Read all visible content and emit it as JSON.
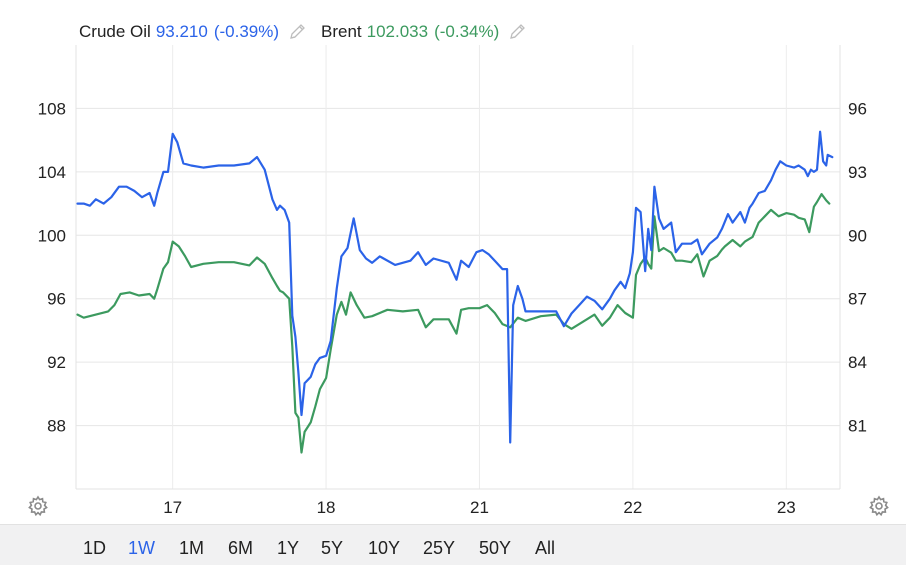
{
  "legend": [
    {
      "name": "Crude Oil",
      "value": "93.210",
      "change": "(-0.39%)",
      "color": "#2b63e8"
    },
    {
      "name": "Brent",
      "value": "102.033",
      "change": "(-0.34%)",
      "color": "#3c9a5f"
    }
  ],
  "range_buttons": [
    "1D",
    "1W",
    "1M",
    "6M",
    "1Y",
    "5Y",
    "10Y",
    "25Y",
    "50Y",
    "All"
  ],
  "active_range": "1W",
  "icons": {
    "edit": "pencil-icon",
    "settings": "gear-icon"
  },
  "chart_data": {
    "type": "line",
    "x_ticks": [
      {
        "label": "17",
        "t": 1.0
      },
      {
        "label": "18",
        "t": 2.0
      },
      {
        "label": "21",
        "t": 3.0
      },
      {
        "label": "22",
        "t": 4.0
      },
      {
        "label": "23",
        "t": 5.0
      }
    ],
    "xlim": [
      0.37,
      5.35
    ],
    "left_axis": {
      "ticks": [
        88,
        92,
        96,
        100,
        104,
        108
      ],
      "ylim": [
        84.0,
        112.0
      ]
    },
    "right_axis": {
      "ticks": [
        81,
        84,
        87,
        90,
        93,
        96
      ],
      "ylim": [
        78.0,
        99.0
      ]
    },
    "grid": true,
    "series": [
      {
        "name": "Brent",
        "axis": "left",
        "color": "#3c9a5f",
        "points": [
          [
            0.38,
            95.0
          ],
          [
            0.42,
            94.8
          ],
          [
            0.5,
            95.0
          ],
          [
            0.58,
            95.2
          ],
          [
            0.62,
            95.6
          ],
          [
            0.66,
            96.3
          ],
          [
            0.72,
            96.4
          ],
          [
            0.78,
            96.2
          ],
          [
            0.85,
            96.3
          ],
          [
            0.88,
            96.0
          ],
          [
            0.9,
            96.6
          ],
          [
            0.94,
            97.9
          ],
          [
            0.97,
            98.3
          ],
          [
            1.0,
            99.6
          ],
          [
            1.04,
            99.3
          ],
          [
            1.08,
            98.7
          ],
          [
            1.12,
            98.0
          ],
          [
            1.2,
            98.2
          ],
          [
            1.3,
            98.3
          ],
          [
            1.4,
            98.3
          ],
          [
            1.5,
            98.1
          ],
          [
            1.55,
            98.6
          ],
          [
            1.6,
            98.2
          ],
          [
            1.65,
            97.3
          ],
          [
            1.68,
            96.8
          ],
          [
            1.7,
            96.5
          ],
          [
            1.72,
            96.4
          ],
          [
            1.76,
            96.0
          ],
          [
            1.78,
            93.0
          ],
          [
            1.8,
            88.8
          ],
          [
            1.82,
            88.5
          ],
          [
            1.84,
            86.3
          ],
          [
            1.86,
            87.6
          ],
          [
            1.9,
            88.2
          ],
          [
            1.93,
            89.2
          ],
          [
            1.96,
            90.3
          ],
          [
            2.0,
            91.0
          ],
          [
            2.03,
            92.8
          ],
          [
            2.07,
            95.0
          ],
          [
            2.1,
            95.8
          ],
          [
            2.13,
            95.0
          ],
          [
            2.16,
            96.4
          ],
          [
            2.2,
            95.6
          ],
          [
            2.25,
            94.8
          ],
          [
            2.3,
            94.9
          ],
          [
            2.4,
            95.3
          ],
          [
            2.5,
            95.2
          ],
          [
            2.6,
            95.3
          ],
          [
            2.65,
            94.2
          ],
          [
            2.7,
            94.7
          ],
          [
            2.8,
            94.7
          ],
          [
            2.85,
            93.8
          ],
          [
            2.88,
            95.3
          ],
          [
            2.93,
            95.4
          ],
          [
            3.0,
            95.4
          ],
          [
            3.05,
            95.6
          ],
          [
            3.1,
            95.1
          ],
          [
            3.15,
            94.4
          ],
          [
            3.2,
            94.2
          ],
          [
            3.25,
            94.8
          ],
          [
            3.3,
            94.6
          ],
          [
            3.4,
            94.9
          ],
          [
            3.5,
            95.0
          ],
          [
            3.55,
            94.4
          ],
          [
            3.6,
            94.1
          ],
          [
            3.65,
            94.4
          ],
          [
            3.7,
            94.7
          ],
          [
            3.75,
            95.0
          ],
          [
            3.8,
            94.3
          ],
          [
            3.85,
            94.8
          ],
          [
            3.9,
            95.6
          ],
          [
            3.95,
            95.1
          ],
          [
            4.0,
            94.8
          ],
          [
            4.02,
            97.5
          ],
          [
            4.05,
            98.2
          ],
          [
            4.08,
            98.6
          ],
          [
            4.1,
            98.2
          ],
          [
            4.12,
            97.9
          ],
          [
            4.14,
            101.2
          ],
          [
            4.17,
            99.0
          ],
          [
            4.2,
            99.2
          ],
          [
            4.25,
            98.9
          ],
          [
            4.28,
            98.4
          ],
          [
            4.32,
            98.4
          ],
          [
            4.38,
            98.3
          ],
          [
            4.42,
            98.8
          ],
          [
            4.46,
            97.4
          ],
          [
            4.5,
            98.4
          ],
          [
            4.55,
            98.7
          ],
          [
            4.58,
            99.1
          ],
          [
            4.6,
            99.3
          ],
          [
            4.65,
            99.7
          ],
          [
            4.7,
            99.3
          ],
          [
            4.73,
            99.6
          ],
          [
            4.78,
            99.9
          ],
          [
            4.82,
            100.8
          ],
          [
            4.86,
            101.2
          ],
          [
            4.9,
            101.6
          ],
          [
            4.95,
            101.2
          ],
          [
            5.0,
            101.4
          ],
          [
            5.05,
            101.3
          ],
          [
            5.08,
            101.1
          ],
          [
            5.12,
            101.0
          ],
          [
            5.15,
            100.2
          ],
          [
            5.18,
            101.8
          ],
          [
            5.2,
            102.1
          ],
          [
            5.23,
            102.6
          ],
          [
            5.26,
            102.2
          ],
          [
            5.28,
            102.0
          ]
        ]
      },
      {
        "name": "Crude Oil",
        "axis": "right",
        "color": "#2b63e8",
        "points": [
          [
            0.38,
            91.5
          ],
          [
            0.42,
            91.5
          ],
          [
            0.46,
            91.4
          ],
          [
            0.5,
            91.7
          ],
          [
            0.55,
            91.5
          ],
          [
            0.6,
            91.8
          ],
          [
            0.65,
            92.3
          ],
          [
            0.7,
            92.3
          ],
          [
            0.75,
            92.1
          ],
          [
            0.8,
            91.8
          ],
          [
            0.85,
            92.0
          ],
          [
            0.88,
            91.4
          ],
          [
            0.9,
            92.0
          ],
          [
            0.94,
            93.0
          ],
          [
            0.97,
            93.0
          ],
          [
            1.0,
            94.8
          ],
          [
            1.03,
            94.4
          ],
          [
            1.07,
            93.4
          ],
          [
            1.12,
            93.3
          ],
          [
            1.2,
            93.2
          ],
          [
            1.3,
            93.3
          ],
          [
            1.4,
            93.3
          ],
          [
            1.5,
            93.4
          ],
          [
            1.55,
            93.7
          ],
          [
            1.6,
            93.1
          ],
          [
            1.65,
            91.7
          ],
          [
            1.68,
            91.2
          ],
          [
            1.7,
            91.4
          ],
          [
            1.73,
            91.2
          ],
          [
            1.76,
            90.6
          ],
          [
            1.78,
            86.2
          ],
          [
            1.8,
            85.2
          ],
          [
            1.82,
            83.5
          ],
          [
            1.84,
            81.5
          ],
          [
            1.86,
            83.0
          ],
          [
            1.9,
            83.3
          ],
          [
            1.93,
            83.9
          ],
          [
            1.96,
            84.2
          ],
          [
            2.0,
            84.3
          ],
          [
            2.03,
            85.0
          ],
          [
            2.07,
            87.5
          ],
          [
            2.1,
            89.0
          ],
          [
            2.14,
            89.4
          ],
          [
            2.18,
            90.8
          ],
          [
            2.22,
            89.3
          ],
          [
            2.26,
            88.9
          ],
          [
            2.3,
            88.7
          ],
          [
            2.35,
            89.0
          ],
          [
            2.45,
            88.6
          ],
          [
            2.55,
            88.8
          ],
          [
            2.6,
            89.2
          ],
          [
            2.65,
            88.6
          ],
          [
            2.7,
            88.9
          ],
          [
            2.8,
            88.7
          ],
          [
            2.85,
            87.9
          ],
          [
            2.88,
            88.8
          ],
          [
            2.93,
            88.5
          ],
          [
            2.98,
            89.2
          ],
          [
            3.02,
            89.3
          ],
          [
            3.06,
            89.1
          ],
          [
            3.1,
            88.8
          ],
          [
            3.15,
            88.4
          ],
          [
            3.18,
            88.4
          ],
          [
            3.2,
            80.2
          ],
          [
            3.22,
            86.7
          ],
          [
            3.25,
            87.6
          ],
          [
            3.28,
            87.0
          ],
          [
            3.3,
            86.4
          ],
          [
            3.4,
            86.4
          ],
          [
            3.5,
            86.4
          ],
          [
            3.55,
            85.7
          ],
          [
            3.6,
            86.3
          ],
          [
            3.65,
            86.7
          ],
          [
            3.7,
            87.1
          ],
          [
            3.75,
            86.9
          ],
          [
            3.8,
            86.5
          ],
          [
            3.85,
            87.0
          ],
          [
            3.88,
            87.4
          ],
          [
            3.92,
            87.8
          ],
          [
            3.95,
            87.5
          ],
          [
            3.98,
            88.2
          ],
          [
            4.0,
            89.2
          ],
          [
            4.02,
            91.3
          ],
          [
            4.05,
            91.1
          ],
          [
            4.08,
            88.3
          ],
          [
            4.1,
            90.3
          ],
          [
            4.12,
            89.3
          ],
          [
            4.14,
            92.3
          ],
          [
            4.17,
            90.8
          ],
          [
            4.2,
            90.3
          ],
          [
            4.25,
            90.6
          ],
          [
            4.28,
            89.2
          ],
          [
            4.32,
            89.6
          ],
          [
            4.38,
            89.6
          ],
          [
            4.42,
            89.8
          ],
          [
            4.45,
            89.1
          ],
          [
            4.5,
            89.6
          ],
          [
            4.55,
            89.9
          ],
          [
            4.58,
            90.3
          ],
          [
            4.62,
            91.0
          ],
          [
            4.65,
            90.6
          ],
          [
            4.7,
            91.1
          ],
          [
            4.73,
            90.6
          ],
          [
            4.76,
            91.3
          ],
          [
            4.78,
            91.5
          ],
          [
            4.82,
            92.0
          ],
          [
            4.86,
            92.1
          ],
          [
            4.9,
            92.6
          ],
          [
            4.93,
            93.1
          ],
          [
            4.96,
            93.5
          ],
          [
            5.0,
            93.3
          ],
          [
            5.05,
            93.2
          ],
          [
            5.08,
            93.3
          ],
          [
            5.12,
            93.1
          ],
          [
            5.14,
            92.8
          ],
          [
            5.16,
            93.1
          ],
          [
            5.18,
            93.0
          ],
          [
            5.2,
            93.1
          ],
          [
            5.22,
            94.9
          ],
          [
            5.24,
            93.5
          ],
          [
            5.26,
            93.3
          ],
          [
            5.27,
            93.8
          ],
          [
            5.3,
            93.7
          ]
        ]
      }
    ]
  }
}
